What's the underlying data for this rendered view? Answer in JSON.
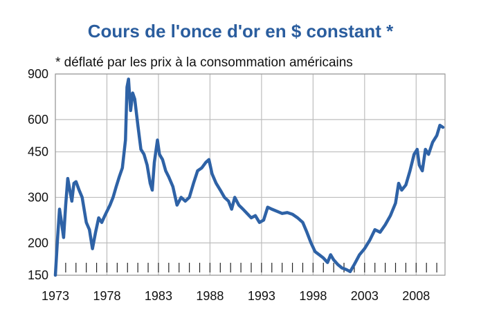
{
  "chart_data": {
    "type": "line",
    "title": "Cours de l'once d'or en $ constant *",
    "subtitle": "* déflaté par les prix à la consommation américains",
    "xlabel": "",
    "ylabel": "",
    "y_scale": "log",
    "xlim": [
      1973,
      2010.8
    ],
    "ylim": [
      150,
      900
    ],
    "y_ticks": [
      150,
      200,
      300,
      450,
      600,
      900
    ],
    "y_tick_labels": [
      "150",
      "200",
      "300",
      "450",
      "600",
      "900"
    ],
    "x_ticks": [
      1973,
      1978,
      1983,
      1988,
      1993,
      1998,
      2003,
      2008
    ],
    "x_tick_labels": [
      "1973",
      "1978",
      "1983",
      "1988",
      "1993",
      "1998",
      "2003",
      "2008"
    ],
    "grid": true,
    "line_color": "#2e62a6",
    "series": [
      {
        "x": [
          1973.0,
          1973.2,
          1973.4,
          1973.6,
          1973.8,
          1974.0,
          1974.2,
          1974.4,
          1974.6,
          1974.8,
          1975.0,
          1975.3,
          1975.6,
          1976.0,
          1976.3,
          1976.6,
          1976.9,
          1977.2,
          1977.5,
          1977.8,
          1978.0,
          1978.3,
          1978.6,
          1978.9,
          1979.2,
          1979.5,
          1979.8,
          1979.95,
          1980.1,
          1980.3,
          1980.5,
          1980.7,
          1981.0,
          1981.3,
          1981.6,
          1981.9,
          1982.2,
          1982.4,
          1982.6,
          1982.9,
          1983.1,
          1983.4,
          1983.7,
          1984.0,
          1984.4,
          1984.8,
          1985.2,
          1985.6,
          1986.0,
          1986.4,
          1986.8,
          1987.2,
          1987.6,
          1987.9,
          1988.2,
          1988.6,
          1989.0,
          1989.4,
          1989.8,
          1990.1,
          1990.4,
          1990.8,
          1991.2,
          1991.6,
          1992.0,
          1992.4,
          1992.8,
          1993.2,
          1993.6,
          1994.0,
          1994.5,
          1995.0,
          1995.5,
          1996.0,
          1996.5,
          1997.0,
          1997.4,
          1997.8,
          1998.2,
          1998.6,
          1999.0,
          1999.4,
          1999.7,
          2000.0,
          2000.4,
          2000.8,
          2001.2,
          2001.6,
          2002.0,
          2002.5,
          2003.0,
          2003.5,
          2004.0,
          2004.5,
          2005.0,
          2005.5,
          2006.0,
          2006.3,
          2006.6,
          2007.0,
          2007.4,
          2007.8,
          2008.1,
          2008.3,
          2008.6,
          2008.9,
          2009.2,
          2009.6,
          2010.0,
          2010.3,
          2010.6
        ],
        "y": [
          150,
          205,
          270,
          240,
          210,
          280,
          355,
          320,
          290,
          340,
          345,
          320,
          300,
          240,
          225,
          190,
          220,
          250,
          240,
          255,
          265,
          280,
          300,
          330,
          360,
          390,
          500,
          800,
          860,
          650,
          760,
          720,
          570,
          460,
          440,
          400,
          340,
          320,
          410,
          500,
          440,
          420,
          380,
          360,
          330,
          280,
          300,
          290,
          300,
          340,
          380,
          390,
          410,
          420,
          370,
          340,
          320,
          300,
          290,
          270,
          300,
          280,
          270,
          260,
          250,
          255,
          240,
          245,
          275,
          270,
          265,
          260,
          262,
          258,
          250,
          240,
          220,
          200,
          185,
          180,
          175,
          168,
          180,
          172,
          165,
          160,
          158,
          155,
          165,
          180,
          190,
          205,
          225,
          220,
          235,
          255,
          285,
          340,
          320,
          335,
          380,
          440,
          460,
          400,
          380,
          460,
          440,
          490,
          520,
          570,
          560
        ]
      }
    ]
  }
}
